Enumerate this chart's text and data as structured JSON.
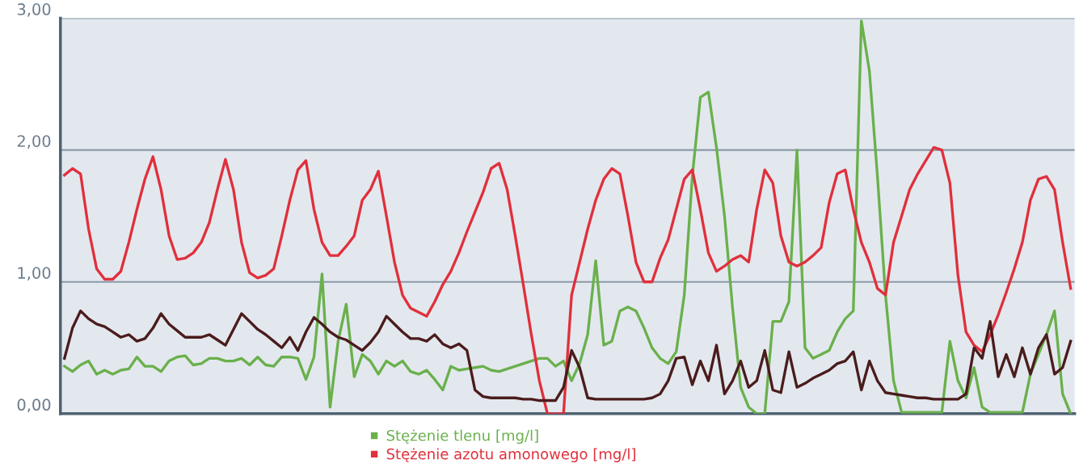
{
  "chart_data": {
    "type": "line",
    "categories": [
      null,
      null,
      null,
      null,
      null,
      null,
      null,
      null,
      null,
      null,
      null,
      null,
      null,
      null,
      null,
      null,
      null,
      null,
      null,
      null,
      null,
      null,
      null,
      null,
      null,
      null,
      null,
      null,
      null,
      null,
      null,
      null,
      null,
      null,
      null,
      null,
      null,
      null,
      null,
      null,
      null,
      null,
      null,
      null,
      null,
      null,
      null,
      null,
      null,
      null,
      null,
      null,
      null,
      null,
      null,
      null,
      null,
      null,
      null,
      null,
      null,
      null,
      null,
      null,
      null,
      null,
      null,
      null,
      null,
      null,
      null,
      null,
      null,
      null,
      null,
      null,
      null,
      null,
      null,
      null,
      null,
      null,
      null,
      null,
      null,
      null,
      null,
      null,
      null,
      null,
      null,
      null,
      null,
      null,
      null,
      null,
      null,
      null,
      null,
      null,
      null,
      null,
      null,
      null,
      null,
      null,
      null,
      null,
      null,
      null,
      null,
      null,
      null,
      null,
      null,
      null,
      null,
      null,
      null,
      null,
      null,
      null,
      null,
      null,
      null,
      null
    ],
    "series": [
      {
        "name": "Stężenie tlenu [mg/l]",
        "color": "#6ab04c",
        "values": [
          0.36,
          0.32,
          0.37,
          0.4,
          0.3,
          0.33,
          0.3,
          0.33,
          0.34,
          0.43,
          0.36,
          0.36,
          0.32,
          0.4,
          0.43,
          0.44,
          0.37,
          0.38,
          0.42,
          0.42,
          0.4,
          0.4,
          0.42,
          0.37,
          0.43,
          0.37,
          0.36,
          0.43,
          0.43,
          0.42,
          0.26,
          0.43,
          1.06,
          0.05,
          0.55,
          0.83,
          0.28,
          0.45,
          0.4,
          0.3,
          0.4,
          0.36,
          0.4,
          0.32,
          0.3,
          0.33,
          0.26,
          0.18,
          0.36,
          0.33,
          0.34,
          0.35,
          0.36,
          0.33,
          0.32,
          0.34,
          0.36,
          0.38,
          0.4,
          0.42,
          0.42,
          0.36,
          0.4,
          0.25,
          0.38,
          0.6,
          1.16,
          0.52,
          0.55,
          0.78,
          0.81,
          0.78,
          0.65,
          0.5,
          0.42,
          0.38,
          0.47,
          0.9,
          1.8,
          2.4,
          2.44,
          2.02,
          1.5,
          0.8,
          0.2,
          0.05,
          0.0,
          0.0,
          0.7,
          0.7,
          0.85,
          2.0,
          0.5,
          0.42,
          0.45,
          0.48,
          0.62,
          0.72,
          0.78,
          2.98,
          2.6,
          1.8,
          0.9,
          0.25,
          0.01,
          0.01,
          0.01,
          0.01,
          0.01,
          0.01,
          0.55,
          0.25,
          0.12,
          0.35,
          0.05,
          0.01,
          0.01,
          0.01,
          0.01,
          0.01,
          0.3,
          0.45,
          0.6,
          0.78,
          0.15,
          0.0
        ]
      },
      {
        "name": "Stężenie azotu amonowego [mg/l]",
        "color": "#e0303c",
        "values": [
          1.81,
          1.86,
          1.82,
          1.4,
          1.1,
          1.02,
          1.02,
          1.08,
          1.3,
          1.55,
          1.78,
          1.95,
          1.7,
          1.35,
          1.17,
          1.18,
          1.22,
          1.3,
          1.45,
          1.7,
          1.93,
          1.7,
          1.3,
          1.07,
          1.03,
          1.05,
          1.1,
          1.35,
          1.62,
          1.85,
          1.92,
          1.55,
          1.3,
          1.2,
          1.2,
          1.27,
          1.35,
          1.62,
          1.7,
          1.84,
          1.5,
          1.15,
          0.9,
          0.8,
          0.77,
          0.74,
          0.85,
          0.98,
          1.08,
          1.22,
          1.38,
          1.53,
          1.68,
          1.86,
          1.9,
          1.7,
          1.35,
          0.98,
          0.6,
          0.25,
          0.0,
          0.0,
          0.0,
          0.9,
          1.15,
          1.4,
          1.62,
          1.78,
          1.86,
          1.82,
          1.5,
          1.15,
          1.0,
          1.0,
          1.18,
          1.32,
          1.55,
          1.78,
          1.85,
          1.55,
          1.22,
          1.08,
          1.12,
          1.17,
          1.2,
          1.15,
          1.55,
          1.85,
          1.75,
          1.35,
          1.15,
          1.12,
          1.15,
          1.2,
          1.26,
          1.6,
          1.82,
          1.85,
          1.55,
          1.3,
          1.15,
          0.95,
          0.9,
          1.3,
          1.5,
          1.7,
          1.82,
          1.92,
          2.02,
          2.0,
          1.75,
          1.05,
          0.62,
          0.52,
          0.47,
          0.6,
          0.75,
          0.92,
          1.1,
          1.3,
          1.62,
          1.78,
          1.8,
          1.7,
          1.3,
          0.95
        ]
      },
      {
        "color": "#4a1c1c",
        "values": [
          0.42,
          0.65,
          0.78,
          0.72,
          0.68,
          0.66,
          0.62,
          0.58,
          0.6,
          0.55,
          0.57,
          0.65,
          0.76,
          0.68,
          0.63,
          0.58,
          0.58,
          0.58,
          0.6,
          0.56,
          0.52,
          0.64,
          0.76,
          0.7,
          0.64,
          0.6,
          0.55,
          0.5,
          0.58,
          0.48,
          0.62,
          0.73,
          0.68,
          0.62,
          0.58,
          0.56,
          0.52,
          0.48,
          0.54,
          0.62,
          0.74,
          0.68,
          0.62,
          0.57,
          0.57,
          0.55,
          0.6,
          0.53,
          0.5,
          0.53,
          0.48,
          0.18,
          0.13,
          0.12,
          0.12,
          0.12,
          0.12,
          0.11,
          0.11,
          0.1,
          0.1,
          0.1,
          0.2,
          0.48,
          0.35,
          0.12,
          0.11,
          0.11,
          0.11,
          0.11,
          0.11,
          0.11,
          0.11,
          0.12,
          0.15,
          0.25,
          0.42,
          0.43,
          0.22,
          0.4,
          0.25,
          0.52,
          0.15,
          0.25,
          0.4,
          0.2,
          0.25,
          0.48,
          0.18,
          0.16,
          0.47,
          0.2,
          0.23,
          0.27,
          0.3,
          0.33,
          0.38,
          0.4,
          0.47,
          0.18,
          0.4,
          0.25,
          0.16,
          0.15,
          0.14,
          0.13,
          0.12,
          0.12,
          0.11,
          0.11,
          0.11,
          0.11,
          0.15,
          0.5,
          0.42,
          0.7,
          0.28,
          0.45,
          0.28,
          0.5,
          0.3,
          0.5,
          0.6,
          0.3,
          0.35,
          0.55
        ]
      }
    ],
    "ylim": [
      0,
      3.0
    ],
    "yticks": [
      {
        "value": 0,
        "label": "0,00"
      },
      {
        "value": 1,
        "label": "1,00"
      },
      {
        "value": 2,
        "label": "2,00"
      },
      {
        "value": 3,
        "label": "3,00"
      }
    ],
    "grid": "y",
    "legend": "bottom",
    "marker": "none",
    "line_style": "solid"
  }
}
